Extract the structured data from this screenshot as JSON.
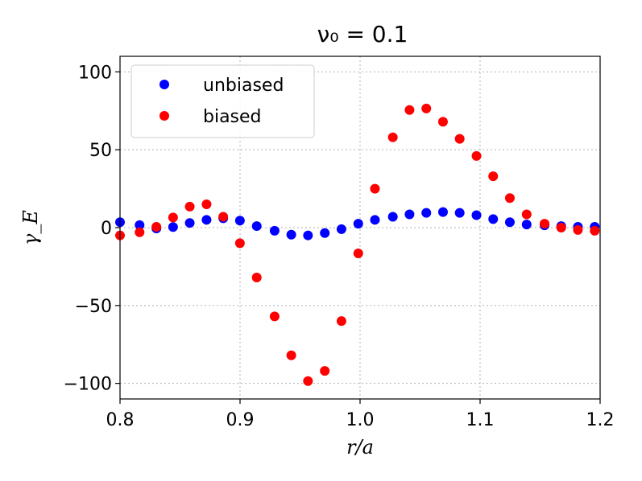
{
  "chart_data": {
    "type": "scatter",
    "title": "ν₀ = 0.1",
    "xlabel": "r/a",
    "ylabel": "γ_E",
    "xlim": [
      0.8,
      1.2
    ],
    "ylim": [
      -110,
      110
    ],
    "xticks": [
      0.8,
      0.9,
      1.0,
      1.1,
      1.2
    ],
    "xtick_labels": [
      "0.8",
      "0.9",
      "1.0",
      "1.1",
      "1.2"
    ],
    "yticks": [
      100,
      50,
      0,
      -50,
      -100
    ],
    "ytick_labels": [
      "100",
      "50",
      "0",
      "−50",
      "−100"
    ],
    "grid": true,
    "legend_position": "top-left",
    "series": [
      {
        "name": "unbiased",
        "color": "#0000ff",
        "x": [
          0.8,
          0.8163,
          0.8303,
          0.8442,
          0.8581,
          0.8721,
          0.886,
          0.8999,
          0.9139,
          0.9288,
          0.9427,
          0.9566,
          0.9706,
          0.9845,
          0.9985,
          1.0124,
          1.0273,
          1.0412,
          1.0552,
          1.0691,
          1.083,
          1.097,
          1.1109,
          1.1248,
          1.1388,
          1.1537,
          1.1676,
          1.1815,
          1.1955
        ],
        "values": [
          3.5,
          1.6,
          -0.5,
          0.4,
          3.0,
          5.0,
          6.0,
          4.5,
          1.0,
          -2.0,
          -4.5,
          -5.0,
          -3.5,
          -1.0,
          2.5,
          5.0,
          7.0,
          8.5,
          9.5,
          10.0,
          9.5,
          8.0,
          5.5,
          3.5,
          2.0,
          1.5,
          1.0,
          0.5,
          0.5
        ]
      },
      {
        "name": "biased",
        "color": "#ff0000",
        "x": [
          0.8,
          0.8163,
          0.8303,
          0.8442,
          0.8581,
          0.8721,
          0.886,
          0.8999,
          0.9139,
          0.9288,
          0.9427,
          0.9566,
          0.9706,
          0.9845,
          0.9985,
          1.0124,
          1.0273,
          1.0412,
          1.0552,
          1.0691,
          1.083,
          1.097,
          1.1109,
          1.1248,
          1.1388,
          1.1537,
          1.1676,
          1.1815,
          1.1955
        ],
        "values": [
          -5.0,
          -3.0,
          0.5,
          6.5,
          13.5,
          15.0,
          7.0,
          -10.0,
          -32.0,
          -57.0,
          -82.0,
          -98.5,
          -92.0,
          -60.0,
          -16.5,
          25.0,
          58.0,
          75.5,
          76.5,
          68.0,
          57.0,
          46.0,
          33.0,
          19.0,
          8.5,
          2.5,
          0.0,
          -1.5,
          -2.0
        ]
      }
    ]
  }
}
